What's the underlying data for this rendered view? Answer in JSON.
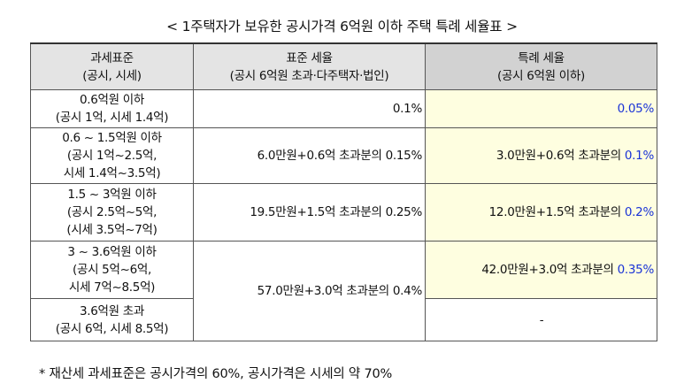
{
  "title": "< 1주택자가 보유한 공시가격 6억원 이하 주택 특례 세율표 >",
  "header": {
    "col1": {
      "line1": "과세표준",
      "line2": "(공시, 시세)"
    },
    "col2": {
      "line1": "표준 세율",
      "line2": "(공시 6억원 초과·다주택자·법인)"
    },
    "col3": {
      "line1": "특례 세율",
      "line2": "(공시 6억원 이하)"
    }
  },
  "rows": [
    {
      "bracket": [
        "0.6억원 이하",
        "(공시 1억, 시세 1.4억)"
      ],
      "standard": {
        "prefix": "",
        "rate": "0.1%"
      },
      "special": {
        "prefix": "",
        "rate": "0.05%"
      }
    },
    {
      "bracket": [
        "0.6 ~ 1.5억원 이하",
        "(공시 1억~2.5억,",
        "시세 1.4억~3.5억)"
      ],
      "standard": {
        "prefix": "6.0만원+0.6억 초과분의 ",
        "rate": "0.15%"
      },
      "special": {
        "prefix": "3.0만원+0.6억 초과분의 ",
        "rate": "0.1%"
      }
    },
    {
      "bracket": [
        "1.5 ~ 3억원 이하",
        "(공시 2.5억~5억,",
        "(시세 3.5억~7억)"
      ],
      "standard": {
        "prefix": "19.5만원+1.5억 초과분의 ",
        "rate": "0.25%"
      },
      "special": {
        "prefix": "12.0만원+1.5억 초과분의 ",
        "rate": "0.2%"
      }
    },
    {
      "bracket": [
        "3 ~ 3.6억원 이하",
        "(공시 5억~6억,",
        "시세 7억~8.5억)"
      ],
      "standard": {
        "prefix": "57.0만원+3.0억 초과분의 ",
        "rate": "0.4%"
      },
      "special": {
        "prefix": "42.0만원+3.0억 초과분의 ",
        "rate": "0.35%"
      }
    },
    {
      "bracket": [
        "3.6억원 초과",
        "(공시 6억, 시세 8.5억)"
      ],
      "special": {
        "text": "-"
      }
    }
  ],
  "footnote": "* 재산세 과세표준은 공시가격의 60%, 공시가격은 시세의 약 70%",
  "colors": {
    "header_bg": "#e4e4e4",
    "header_special_bg": "#d2d2d2",
    "special_cell_bg": "#fefee0",
    "highlight_rate": "#1a33d6"
  }
}
